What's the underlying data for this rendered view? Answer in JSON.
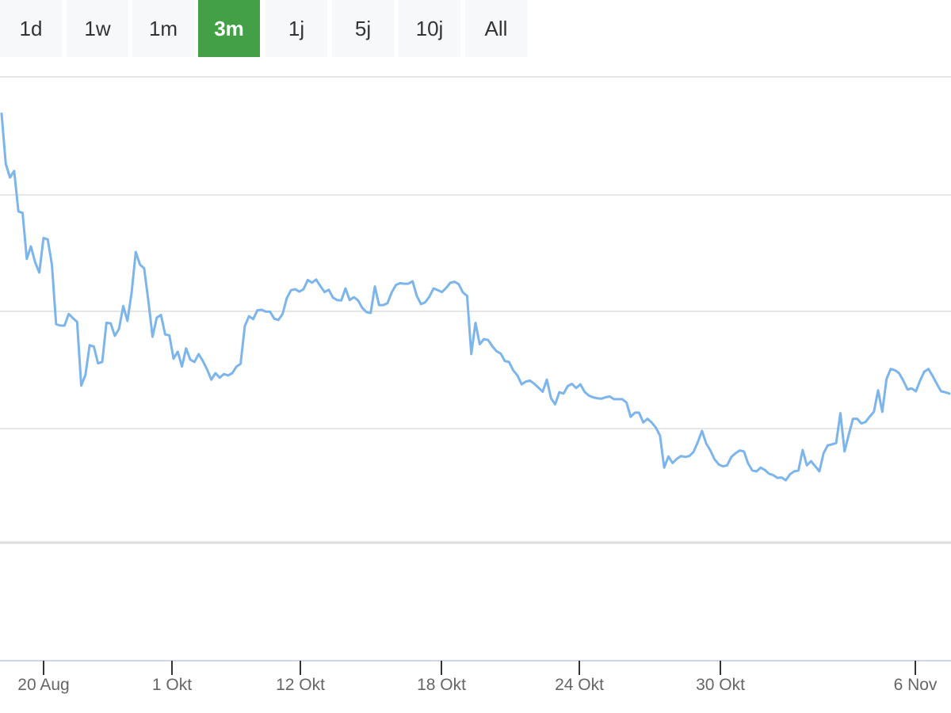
{
  "range_selector": {
    "buttons": [
      {
        "label": "1d",
        "active": false
      },
      {
        "label": "1w",
        "active": false
      },
      {
        "label": "1m",
        "active": false
      },
      {
        "label": "3m",
        "active": true
      },
      {
        "label": "1j",
        "active": false
      },
      {
        "label": "5j",
        "active": false
      },
      {
        "label": "10j",
        "active": false
      },
      {
        "label": "All",
        "active": false
      }
    ],
    "active_color": "#43a047"
  },
  "chart_data": {
    "type": "line",
    "title": "",
    "xlabel": "",
    "ylabel": "",
    "grid": true,
    "legend": "none",
    "line_color": "#7cb5ec",
    "x_ticks": [
      "20 Aug",
      "1 Okt",
      "12 Okt",
      "18 Okt",
      "24 Okt",
      "30 Okt",
      "6 Nov"
    ],
    "ylim": [
      0,
      100
    ],
    "series": [
      {
        "values": [
          92.1,
          81.3,
          78.4,
          79.8,
          71.1,
          70.8,
          60.9,
          63.6,
          60.2,
          58.0,
          65.4,
          65.1,
          59.7,
          46.9,
          46.6,
          46.6,
          49.1,
          48.2,
          47.4,
          33.7,
          36.0,
          42.4,
          42.1,
          38.5,
          38.8,
          47.2,
          47.1,
          44.4,
          45.9,
          50.8,
          47.6,
          53.7,
          62.4,
          59.7,
          58.9,
          51.9,
          44.2,
          48.3,
          48.9,
          44.7,
          44.5,
          39.5,
          41.0,
          37.8,
          41.7,
          39.3,
          38.8,
          40.5,
          39.0,
          37.2,
          35.0,
          36.4,
          35.4,
          36.2,
          35.9,
          36.4,
          37.8,
          38.4,
          46.5,
          48.6,
          48.0,
          49.9,
          50.0,
          49.6,
          49.6,
          48.1,
          47.8,
          49.1,
          52.5,
          54.2,
          54.4,
          53.9,
          54.4,
          56.4,
          55.8,
          56.5,
          55.1,
          53.8,
          54.3,
          52.6,
          52.1,
          52.0,
          54.6,
          52.1,
          52.7,
          52.0,
          50.4,
          49.5,
          49.3,
          55.0,
          51.0,
          51.0,
          51.4,
          53.7,
          55.3,
          55.7,
          55.6,
          55.6,
          56.1,
          53.0,
          51.2,
          51.6,
          52.8,
          54.6,
          54.2,
          53.8,
          54.7,
          55.8,
          56.0,
          55.5,
          53.7,
          53.0,
          40.5,
          47.2,
          42.6,
          43.7,
          43.5,
          42.2,
          41.1,
          40.6,
          39.0,
          38.8,
          37.0,
          35.9,
          34.0,
          34.6,
          34.8,
          34.1,
          33.3,
          32.4,
          35.0,
          31.0,
          29.7,
          32.3,
          32.0,
          33.6,
          34.1,
          33.2,
          34.0,
          32.4,
          31.6,
          31.2,
          31.0,
          30.9,
          31.2,
          31.4,
          30.8,
          30.8,
          30.8,
          30.1,
          27.0,
          27.9,
          27.9,
          25.8,
          26.6,
          25.8,
          24.7,
          23.0,
          16.1,
          18.5,
          17.1,
          18.0,
          18.6,
          18.4,
          18.6,
          19.5,
          21.6,
          24.0,
          21.3,
          19.8,
          17.9,
          16.8,
          16.4,
          16.6,
          18.4,
          19.2,
          19.8,
          19.6,
          17.0,
          15.5,
          15.3,
          16.1,
          15.6,
          14.8,
          14.5,
          13.9,
          14.0,
          13.4,
          14.7,
          15.3,
          15.5,
          19.9,
          16.6,
          17.5,
          16.4,
          15.3,
          19.2,
          20.9,
          21.1,
          21.4,
          27.8,
          19.6,
          23.2,
          26.6,
          26.6,
          25.6,
          25.9,
          27.1,
          28.1,
          32.7,
          28.1,
          35.1,
          37.3,
          37.0,
          36.4,
          34.8,
          32.9,
          33.1,
          32.5,
          34.8,
          36.7,
          37.3,
          35.8,
          34.1,
          32.5,
          32.3,
          32.0
        ]
      }
    ]
  }
}
